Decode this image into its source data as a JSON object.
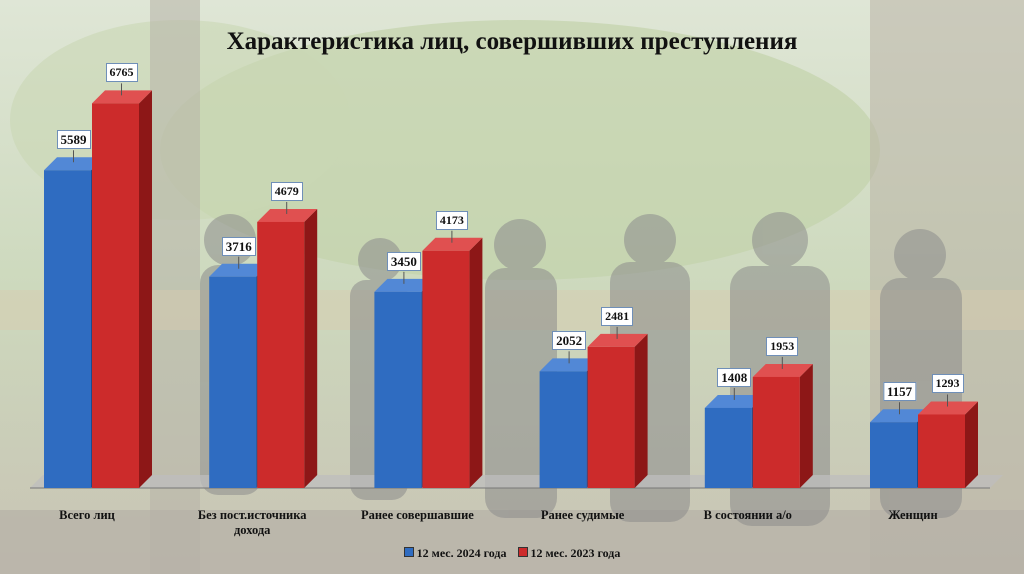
{
  "title": "Характеристика лиц, совершивших преступления",
  "colors": {
    "series_2024": "#2f6cc1",
    "series_2024_side": "#1d4a8c",
    "series_2024_top": "#5288d6",
    "series_2023": "#cc2b2b",
    "series_2023_side": "#8d1717",
    "series_2023_top": "#e05050"
  },
  "chart_data": {
    "type": "bar",
    "title": "Характеристика лиц, совершивших преступления",
    "categories": [
      "Всего лиц",
      "Без пост.источника дохода",
      "Ранее совершавшие",
      "Ранее судимые",
      "В состоянии а/о",
      "Женщин"
    ],
    "category_lines": [
      [
        "Всего лиц"
      ],
      [
        "Без пост.источника",
        "дохода"
      ],
      [
        "Ранее совершавшие"
      ],
      [
        "Ранее судимые"
      ],
      [
        "В состоянии а/о"
      ],
      [
        "Женщин"
      ]
    ],
    "series": [
      {
        "name": "12 мес. 2024 года",
        "values": [
          5589,
          3716,
          3450,
          2052,
          1408,
          1157
        ]
      },
      {
        "name": "12 мес. 2023 года",
        "values": [
          6765,
          4679,
          4173,
          2481,
          1953,
          1293
        ]
      }
    ],
    "ylim": [
      0,
      7000
    ],
    "grid": false,
    "legend_position": "bottom",
    "three_d": true
  }
}
